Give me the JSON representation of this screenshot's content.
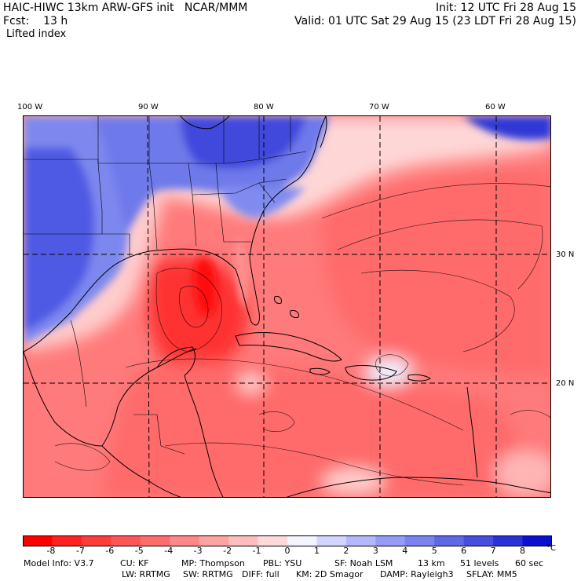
{
  "header": {
    "title": "HAIC-HIWC 13km ARW-GFS init   NCAR/MMM",
    "forecast_label": "Fcst:",
    "forecast_value": "13 h",
    "field_name": "Lifted index",
    "init": "Init: 12 UTC Fri 28 Aug 15",
    "valid": "Valid: 01 UTC Sat 29 Aug 15 (23 LDT Fri 28 Aug 15)"
  },
  "map": {
    "lon_labels": [
      {
        "text": "100 W",
        "lon": -100
      },
      {
        "text": "90 W",
        "lon": -90
      },
      {
        "text": "80 W",
        "lon": -80
      },
      {
        "text": "70 W",
        "lon": -70
      },
      {
        "text": "60 W",
        "lon": -60
      }
    ],
    "lat_labels": [
      {
        "text": "30 N",
        "lat": 30
      },
      {
        "text": "20 N",
        "lat": 20
      }
    ],
    "extent": {
      "lon_min": -101,
      "lon_max": -56,
      "lat_min": 11,
      "lat_max": 39
    },
    "colors": {
      "ocean_warm": "#ff6666",
      "land_stable": "#6b7df0",
      "coast": "#000000"
    }
  },
  "colorbar": {
    "labels": [
      "-8",
      "-7",
      "-6",
      "-5",
      "-4",
      "-3",
      "-2",
      "-1",
      "0",
      "1",
      "2",
      "3",
      "4",
      "5",
      "6",
      "7",
      "8"
    ],
    "unit": "°C",
    "colors": [
      "#ff0000",
      "#ff2020",
      "#ff3c3c",
      "#ff5555",
      "#ff6c6c",
      "#ff8787",
      "#ffa2a2",
      "#ffbdbd",
      "#ffd9d9",
      "#f4f4ff",
      "#d2d5ff",
      "#b3b8fb",
      "#959cf5",
      "#7b83ee",
      "#6168e6",
      "#464ddf",
      "#2a31d8",
      "#0a10d0"
    ]
  },
  "model_info": {
    "line1": [
      {
        "text": "Model Info: V3.7"
      },
      {
        "text": "CU: KF"
      },
      {
        "text": "MP: Thompson"
      },
      {
        "text": "PBL: YSU"
      },
      {
        "text": "SF: Noah LSM"
      },
      {
        "text": "13 km"
      },
      {
        "text": "51 levels"
      },
      {
        "text": "60 sec"
      }
    ],
    "line2": [
      {
        "text": "LW: RRTMG"
      },
      {
        "text": "SW: RRTMG"
      },
      {
        "text": "DIFF: full"
      },
      {
        "text": "KM: 2D Smagor"
      },
      {
        "text": "DAMP: Rayleigh3"
      },
      {
        "text": "SFLAY: MM5"
      }
    ]
  }
}
